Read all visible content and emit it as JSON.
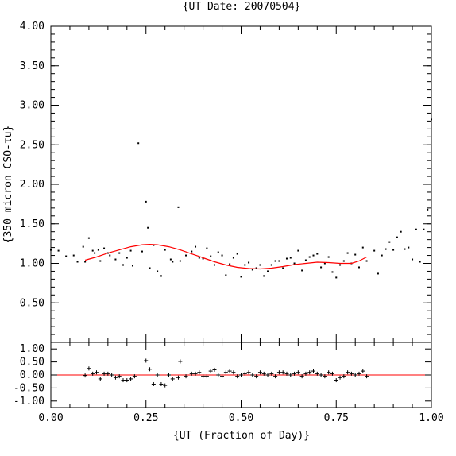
{
  "chart_data": [
    {
      "type": "scatter",
      "title": "{UT Date: 20070504}",
      "ylabel": "{350 micron CSO-τu}",
      "xlim": [
        0,
        1
      ],
      "ylim": [
        0,
        4
      ],
      "yticks": [
        "4.00",
        "3.50",
        "3.00",
        "2.50",
        "2.00",
        "1.50",
        "1.00",
        "0.50"
      ],
      "grid": false,
      "points_color": "#000000",
      "fit_color": "#ff0000",
      "points": {
        "x": [
          0.0,
          0.02,
          0.04,
          0.06,
          0.07,
          0.085,
          0.09,
          0.1,
          0.11,
          0.115,
          0.125,
          0.13,
          0.14,
          0.15,
          0.155,
          0.17,
          0.18,
          0.19,
          0.2,
          0.21,
          0.215,
          0.23,
          0.24,
          0.25,
          0.255,
          0.26,
          0.27,
          0.28,
          0.29,
          0.3,
          0.315,
          0.32,
          0.335,
          0.34,
          0.355,
          0.37,
          0.38,
          0.39,
          0.4,
          0.41,
          0.42,
          0.43,
          0.44,
          0.45,
          0.46,
          0.47,
          0.48,
          0.49,
          0.5,
          0.51,
          0.52,
          0.53,
          0.54,
          0.55,
          0.56,
          0.57,
          0.58,
          0.59,
          0.6,
          0.61,
          0.62,
          0.63,
          0.64,
          0.65,
          0.66,
          0.67,
          0.68,
          0.69,
          0.7,
          0.71,
          0.72,
          0.73,
          0.74,
          0.75,
          0.76,
          0.77,
          0.78,
          0.79,
          0.8,
          0.81,
          0.82,
          0.83,
          0.85,
          0.86,
          0.87,
          0.88,
          0.89,
          0.9,
          0.91,
          0.92,
          0.93,
          0.94,
          0.95,
          0.96,
          0.97,
          0.98,
          0.99,
          1.0
        ],
        "y": [
          1.17,
          1.16,
          1.09,
          1.1,
          1.02,
          1.21,
          1.02,
          1.32,
          1.16,
          1.13,
          1.17,
          1.03,
          1.19,
          1.13,
          1.1,
          1.05,
          1.13,
          0.98,
          1.07,
          1.16,
          0.97,
          2.52,
          1.15,
          1.78,
          1.45,
          0.94,
          1.23,
          0.9,
          0.84,
          1.17,
          1.05,
          1.02,
          1.71,
          1.03,
          1.1,
          1.15,
          1.21,
          1.07,
          1.06,
          1.19,
          1.09,
          0.98,
          1.14,
          1.1,
          0.85,
          0.99,
          1.07,
          1.12,
          0.83,
          0.98,
          1.01,
          0.92,
          0.94,
          0.98,
          0.84,
          0.9,
          0.98,
          1.03,
          1.03,
          0.94,
          1.06,
          1.07,
          1.0,
          1.16,
          0.91,
          1.04,
          1.08,
          1.1,
          1.12,
          0.95,
          1.0,
          1.08,
          0.89,
          0.82,
          0.98,
          1.03,
          1.13,
          1.0,
          1.11,
          0.95,
          1.2,
          1.03,
          1.16,
          0.87,
          1.1,
          1.18,
          1.27,
          1.17,
          1.33,
          1.4,
          1.18,
          1.2,
          1.05,
          1.43,
          1.02,
          1.43,
          1.68,
          2.82
        ]
      },
      "fit": {
        "x": [
          0.09,
          0.12,
          0.15,
          0.18,
          0.21,
          0.24,
          0.26,
          0.28,
          0.31,
          0.34,
          0.37,
          0.4,
          0.43,
          0.46,
          0.49,
          0.52,
          0.55,
          0.58,
          0.61,
          0.64,
          0.67,
          0.7,
          0.73,
          0.76,
          0.79,
          0.81,
          0.83
        ],
        "y": [
          1.04,
          1.08,
          1.13,
          1.17,
          1.21,
          1.235,
          1.24,
          1.235,
          1.21,
          1.17,
          1.12,
          1.07,
          1.02,
          0.98,
          0.95,
          0.935,
          0.93,
          0.94,
          0.96,
          0.985,
          1.0,
          1.015,
          1.01,
          1.0,
          1.0,
          1.03,
          1.08
        ]
      }
    },
    {
      "type": "scatter",
      "xlabel": "{UT (Fraction of Day)}",
      "xlim": [
        0,
        1
      ],
      "ylim": [
        -1.25,
        1.25
      ],
      "xticks": [
        "0.00",
        "0.25",
        "0.50",
        "0.75",
        "1.00"
      ],
      "yticks": [
        "1.00",
        "0.50",
        "0.00",
        "-0.50",
        "-1.00"
      ],
      "zero_line_color": "#ff0000",
      "residuals": {
        "x": [
          0.09,
          0.1,
          0.11,
          0.12,
          0.13,
          0.14,
          0.15,
          0.16,
          0.17,
          0.18,
          0.19,
          0.2,
          0.21,
          0.22,
          0.25,
          0.26,
          0.27,
          0.28,
          0.29,
          0.3,
          0.31,
          0.32,
          0.335,
          0.34,
          0.355,
          0.37,
          0.38,
          0.39,
          0.4,
          0.41,
          0.42,
          0.43,
          0.44,
          0.45,
          0.46,
          0.47,
          0.48,
          0.49,
          0.5,
          0.51,
          0.52,
          0.53,
          0.54,
          0.55,
          0.56,
          0.57,
          0.58,
          0.59,
          0.6,
          0.61,
          0.62,
          0.63,
          0.64,
          0.65,
          0.66,
          0.67,
          0.68,
          0.69,
          0.7,
          0.71,
          0.72,
          0.73,
          0.74,
          0.75,
          0.76,
          0.77,
          0.78,
          0.79,
          0.8,
          0.81,
          0.82,
          0.83
        ],
        "y": [
          -0.02,
          0.25,
          0.05,
          0.1,
          -0.15,
          0.05,
          0.05,
          0.0,
          -0.1,
          -0.05,
          -0.2,
          -0.2,
          -0.15,
          -0.05,
          0.55,
          0.22,
          -0.35,
          0.0,
          -0.35,
          -0.4,
          0.0,
          -0.15,
          -0.1,
          0.52,
          -0.05,
          0.05,
          0.05,
          0.1,
          -0.05,
          -0.05,
          0.15,
          0.2,
          0.0,
          -0.05,
          0.1,
          0.15,
          0.1,
          -0.05,
          0.0,
          0.05,
          0.1,
          0.0,
          -0.05,
          0.1,
          0.05,
          0.0,
          0.05,
          -0.05,
          0.1,
          0.1,
          0.05,
          0.0,
          0.05,
          0.1,
          -0.05,
          0.05,
          0.1,
          0.15,
          0.05,
          0.0,
          -0.05,
          0.1,
          0.05,
          -0.2,
          -0.1,
          -0.05,
          0.1,
          0.05,
          0.0,
          0.05,
          0.15,
          -0.05
        ]
      }
    }
  ]
}
